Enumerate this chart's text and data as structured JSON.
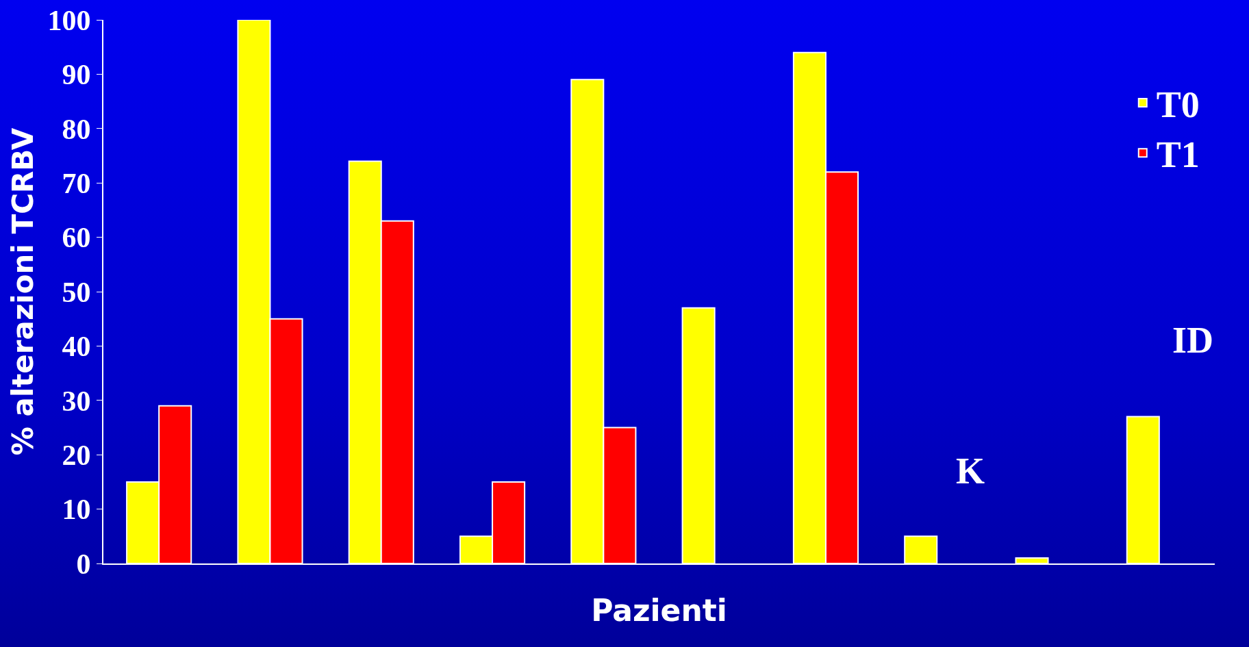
{
  "chart_data": {
    "type": "bar",
    "xlabel": "Pazienti",
    "ylabel": "% alterazioni TCRBV",
    "categories": [
      null,
      null,
      null,
      null,
      null,
      null,
      null,
      null,
      null,
      null
    ],
    "series": [
      {
        "name": "T0",
        "color": "#ffff00",
        "values": [
          15,
          100,
          74,
          5,
          89,
          47,
          94,
          5,
          1,
          27
        ]
      },
      {
        "name": "T1",
        "color": "#ff0000",
        "values": [
          29,
          45,
          63,
          15,
          25,
          null,
          72,
          null,
          null,
          null
        ]
      }
    ],
    "ylim": [
      0,
      100
    ],
    "yticks": [
      0,
      10,
      20,
      30,
      40,
      50,
      60,
      70,
      80,
      90,
      100
    ],
    "annotations": [
      "K",
      "ID"
    ],
    "grid": false,
    "legend": "top right"
  }
}
